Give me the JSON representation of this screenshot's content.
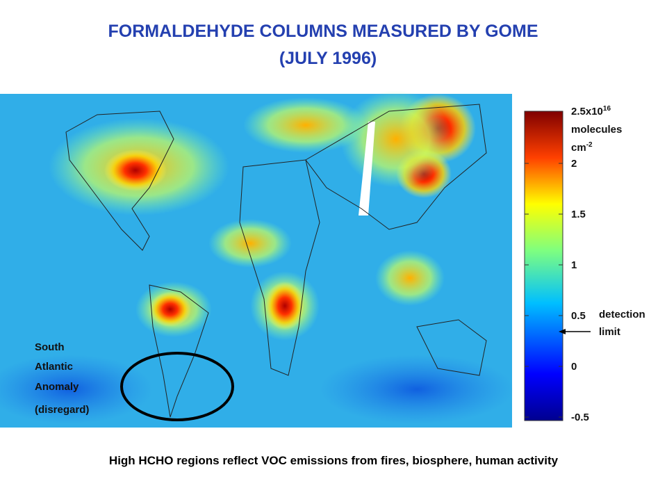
{
  "title": [
    "FORMALDEHYDE COLUMNS MEASURED BY GOME",
    "(JULY 1996)"
  ],
  "colorbar": {
    "ticks": [
      -0.5,
      0,
      0.5,
      1,
      1.5,
      2
    ],
    "top_label": {
      "base": "2.5x10",
      "exponent": "16",
      "unit": "molecules",
      "unit2": "cm",
      "unit2_exponent": "-2"
    },
    "marker_label": [
      "detection",
      "limit"
    ]
  },
  "annotation": [
    "South",
    "Atlantic",
    "Anomaly",
    "(disregard)"
  ],
  "caption": "High HCHO regions reflect VOC emissions from fires, biosphere, human activity"
}
